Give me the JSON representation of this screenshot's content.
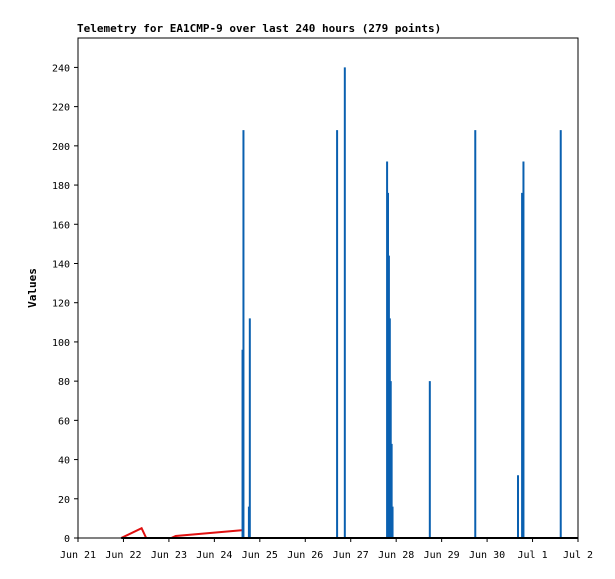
{
  "chart_data": {
    "type": "bar",
    "title": "Telemetry for EA1CMP-9 over last 240 hours (279 points)",
    "xlabel": "",
    "ylabel": "Values",
    "x_tick_labels": [
      "Jun 21",
      "Jun 22",
      "Jun 23",
      "Jun 24",
      "Jun 25",
      "Jun 26",
      "Jun 27",
      "Jun 28",
      "Jun 29",
      "Jun 30",
      "Jul 1",
      "Jul 2"
    ],
    "xlim": [
      0,
      11
    ],
    "ylim": [
      0,
      255
    ],
    "y_ticks": [
      0,
      20,
      40,
      60,
      80,
      100,
      120,
      140,
      160,
      180,
      200,
      220,
      240
    ],
    "grid": false,
    "series": [
      {
        "color": "#0a60b0",
        "style": "impulse",
        "points": [
          [
            3.62,
            96
          ],
          [
            3.64,
            208
          ],
          [
            3.76,
            16
          ],
          [
            3.78,
            112
          ],
          [
            5.7,
            208
          ],
          [
            5.87,
            240
          ],
          [
            6.8,
            192
          ],
          [
            6.82,
            176
          ],
          [
            6.84,
            144
          ],
          [
            6.86,
            112
          ],
          [
            6.88,
            80
          ],
          [
            6.9,
            48
          ],
          [
            6.92,
            16
          ],
          [
            7.74,
            80
          ],
          [
            8.74,
            208
          ],
          [
            9.68,
            32
          ],
          [
            9.77,
            176
          ],
          [
            9.8,
            192
          ],
          [
            10.62,
            208
          ]
        ]
      },
      {
        "color": "#e01010",
        "style": "line",
        "points": [
          [
            0.95,
            0
          ],
          [
            1.4,
            5
          ],
          [
            1.5,
            0
          ],
          [
            2.05,
            0
          ],
          [
            2.15,
            1
          ],
          [
            3.6,
            4
          ]
        ]
      },
      {
        "color": "#000000",
        "style": "line",
        "points": [
          [
            0.95,
            0
          ],
          [
            11.0,
            0
          ]
        ]
      }
    ]
  }
}
